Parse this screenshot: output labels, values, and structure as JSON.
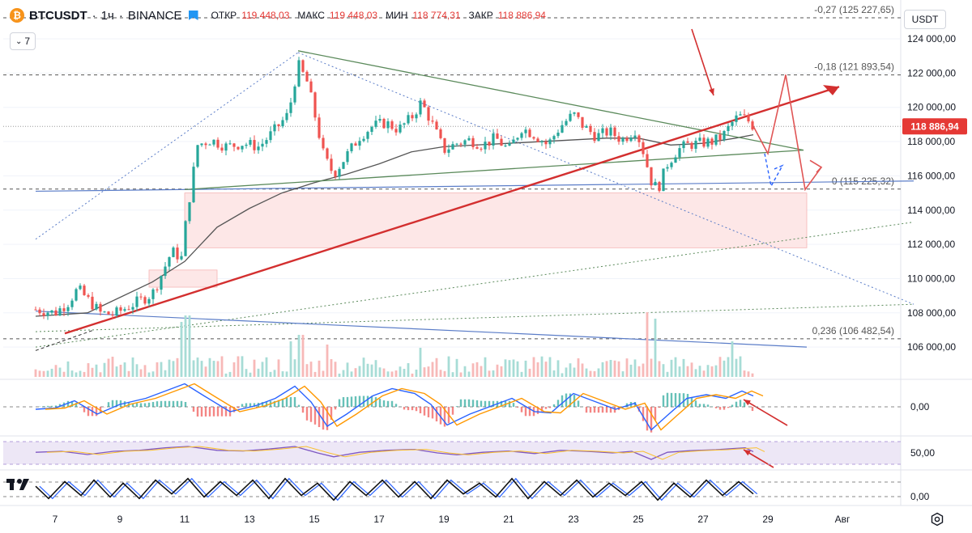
{
  "header": {
    "symbol": "BTCUSDT",
    "sep1": "·",
    "interval": "1ч",
    "sep2": "·",
    "exchange": "BINANCE",
    "open_label": "ОТКР",
    "open_value": "119 448,03",
    "high_label": "МАКС",
    "high_value": "119 448,03",
    "low_label": "МИН",
    "low_value": "118 774,31",
    "close_label": "ЗАКР",
    "close_value": "118 886,94",
    "coin_symbol": "₿"
  },
  "indicators_toggle": {
    "count": "7",
    "icon": "chevron-down-icon"
  },
  "currency_selector": {
    "label": "USDT"
  },
  "settings": {
    "icon": "gear-icon"
  },
  "colors": {
    "up": "#26a69a",
    "down": "#ef5350",
    "trend_red": "#d32f2f",
    "triangle": "#5b8a5b",
    "blue_line": "#5b7dc8",
    "ma": "#555555",
    "fib": "#555555",
    "price_tag": "#e53935",
    "rsi_band": "#ede7f6"
  },
  "chart_data": {
    "type": "candlestick",
    "title": "BTCUSDT · 1ч · BINANCE",
    "last_price": 118886.94,
    "last_price_label": "118 886,94",
    "ylim": [
      105000,
      125500
    ],
    "y_ticks": [
      {
        "v": 124000,
        "label": "124 000,00"
      },
      {
        "v": 122000,
        "label": "122 000,00"
      },
      {
        "v": 120000,
        "label": "120 000,00"
      },
      {
        "v": 118000,
        "label": "118 000,00"
      },
      {
        "v": 116000,
        "label": "116 000,00"
      },
      {
        "v": 114000,
        "label": "114 000,00"
      },
      {
        "v": 112000,
        "label": "112 000,00"
      },
      {
        "v": 110000,
        "label": "110 000,00"
      },
      {
        "v": 108000,
        "label": "108 000,00"
      },
      {
        "v": 106000,
        "label": "106 000,00"
      }
    ],
    "x_ticks": [
      {
        "d": 7,
        "label": "7"
      },
      {
        "d": 9,
        "label": "9"
      },
      {
        "d": 11,
        "label": "11"
      },
      {
        "d": 13,
        "label": "13"
      },
      {
        "d": 15,
        "label": "15"
      },
      {
        "d": 17,
        "label": "17"
      },
      {
        "d": 19,
        "label": "19"
      },
      {
        "d": 21,
        "label": "21"
      },
      {
        "d": 23,
        "label": "23"
      },
      {
        "d": 25,
        "label": "25"
      },
      {
        "d": 27,
        "label": "27"
      },
      {
        "d": 29,
        "label": "29"
      },
      {
        "d": 32,
        "label": "Авг"
      }
    ],
    "fib_levels": [
      {
        "v": 125227.65,
        "label": "-0,27 (125 227,65)"
      },
      {
        "v": 121893.54,
        "label": "-0,18 (121 893,54)"
      },
      {
        "v": 115225.32,
        "label": "0 (115 225,32)"
      },
      {
        "v": 106482.54,
        "label": "0,236 (106 482,54)"
      }
    ],
    "price_path": [
      [
        6.4,
        108200
      ],
      [
        7.0,
        108000
      ],
      [
        7.4,
        108600
      ],
      [
        7.7,
        109400
      ],
      [
        8.0,
        108800
      ],
      [
        8.4,
        108000
      ],
      [
        8.8,
        107900
      ],
      [
        9.2,
        108300
      ],
      [
        9.6,
        108700
      ],
      [
        10.0,
        109100
      ],
      [
        10.3,
        110300
      ],
      [
        10.6,
        111600
      ],
      [
        10.9,
        111200
      ],
      [
        11.0,
        112800
      ],
      [
        11.2,
        115400
      ],
      [
        11.4,
        117800
      ],
      [
        11.8,
        118100
      ],
      [
        12.3,
        117700
      ],
      [
        12.8,
        117900
      ],
      [
        13.3,
        117700
      ],
      [
        13.7,
        118500
      ],
      [
        14.2,
        119600
      ],
      [
        14.5,
        122500
      ],
      [
        14.8,
        121400
      ],
      [
        15.0,
        119700
      ],
      [
        15.3,
        117100
      ],
      [
        15.6,
        116100
      ],
      [
        16.0,
        117200
      ],
      [
        16.4,
        118300
      ],
      [
        16.8,
        118900
      ],
      [
        17.2,
        119100
      ],
      [
        17.6,
        118700
      ],
      [
        18.0,
        119400
      ],
      [
        18.3,
        120300
      ],
      [
        18.6,
        119200
      ],
      [
        19.0,
        117500
      ],
      [
        19.4,
        117900
      ],
      [
        19.8,
        118100
      ],
      [
        20.2,
        117800
      ],
      [
        20.6,
        118200
      ],
      [
        21.0,
        117500
      ],
      [
        21.4,
        118800
      ],
      [
        21.8,
        118400
      ],
      [
        22.2,
        117800
      ],
      [
        22.6,
        118900
      ],
      [
        23.0,
        119600
      ],
      [
        23.3,
        118900
      ],
      [
        23.7,
        118300
      ],
      [
        24.1,
        118600
      ],
      [
        24.5,
        118100
      ],
      [
        24.9,
        118700
      ],
      [
        25.1,
        117800
      ],
      [
        25.4,
        115700
      ],
      [
        25.6,
        115200
      ],
      [
        25.9,
        116700
      ],
      [
        26.2,
        117500
      ],
      [
        26.5,
        117800
      ],
      [
        26.9,
        117900
      ],
      [
        27.3,
        118000
      ],
      [
        27.6,
        118300
      ],
      [
        27.9,
        119100
      ],
      [
        28.1,
        119500
      ],
      [
        28.35,
        119300
      ],
      [
        28.55,
        118900
      ]
    ],
    "volume_spikes": [
      {
        "d": 10.9,
        "h": 0.85
      },
      {
        "d": 11.1,
        "h": 0.95
      },
      {
        "d": 14.3,
        "h": 0.55
      },
      {
        "d": 14.6,
        "h": 0.65
      },
      {
        "d": 15.4,
        "h": 0.5
      },
      {
        "d": 18.3,
        "h": 0.45
      },
      {
        "d": 25.3,
        "h": 1.0
      },
      {
        "d": 25.5,
        "h": 0.9
      },
      {
        "d": 27.9,
        "h": 0.55
      }
    ],
    "macd": {
      "zero_label": "0,00",
      "ylim": [
        -1,
        1
      ],
      "points": [
        [
          6.4,
          -0.1
        ],
        [
          7.0,
          -0.05
        ],
        [
          7.6,
          0.25
        ],
        [
          8.3,
          -0.3
        ],
        [
          9.0,
          0.1
        ],
        [
          9.8,
          0.35
        ],
        [
          10.6,
          0.75
        ],
        [
          11.0,
          0.95
        ],
        [
          11.6,
          0.45
        ],
        [
          12.4,
          -0.2
        ],
        [
          13.2,
          0.05
        ],
        [
          13.8,
          0.35
        ],
        [
          14.4,
          0.85
        ],
        [
          14.9,
          0.2
        ],
        [
          15.4,
          -0.8
        ],
        [
          16.0,
          -0.3
        ],
        [
          16.8,
          0.45
        ],
        [
          17.4,
          0.75
        ],
        [
          18.1,
          0.55
        ],
        [
          18.6,
          0.1
        ],
        [
          19.1,
          -0.75
        ],
        [
          19.8,
          -0.3
        ],
        [
          20.5,
          0.05
        ],
        [
          21.1,
          0.35
        ],
        [
          21.8,
          -0.2
        ],
        [
          22.3,
          -0.25
        ],
        [
          23.0,
          0.55
        ],
        [
          23.6,
          0.25
        ],
        [
          24.3,
          -0.1
        ],
        [
          24.9,
          0.15
        ],
        [
          25.4,
          -0.95
        ],
        [
          25.9,
          -0.35
        ],
        [
          26.5,
          0.35
        ],
        [
          27.1,
          0.5
        ],
        [
          27.7,
          0.35
        ],
        [
          28.2,
          0.65
        ],
        [
          28.55,
          0.45
        ]
      ]
    },
    "rsi": {
      "level_label": "50,00",
      "ylim": [
        0,
        100
      ],
      "points": [
        [
          6.4,
          52
        ],
        [
          7.2,
          55
        ],
        [
          8.0,
          45
        ],
        [
          8.8,
          55
        ],
        [
          9.6,
          58
        ],
        [
          10.4,
          66
        ],
        [
          11.1,
          70
        ],
        [
          12.0,
          58
        ],
        [
          12.8,
          56
        ],
        [
          13.6,
          62
        ],
        [
          14.4,
          70
        ],
        [
          15.1,
          50
        ],
        [
          15.6,
          38
        ],
        [
          16.4,
          52
        ],
        [
          17.2,
          58
        ],
        [
          18.1,
          61
        ],
        [
          18.8,
          50
        ],
        [
          19.4,
          44
        ],
        [
          20.2,
          52
        ],
        [
          21.0,
          56
        ],
        [
          21.8,
          48
        ],
        [
          22.6,
          58
        ],
        [
          23.4,
          55
        ],
        [
          24.2,
          50
        ],
        [
          24.8,
          55
        ],
        [
          25.4,
          30
        ],
        [
          25.9,
          52
        ],
        [
          26.6,
          57
        ],
        [
          27.4,
          60
        ],
        [
          28.0,
          64
        ],
        [
          28.3,
          66
        ],
        [
          28.55,
          54
        ]
      ]
    },
    "stoch": {
      "zero_label": "0,00",
      "ylim": [
        0,
        100
      ],
      "points": [
        [
          6.4,
          60
        ],
        [
          6.8,
          20
        ],
        [
          7.3,
          75
        ],
        [
          7.8,
          30
        ],
        [
          8.2,
          80
        ],
        [
          8.7,
          25
        ],
        [
          9.1,
          70
        ],
        [
          9.6,
          20
        ],
        [
          10.1,
          80
        ],
        [
          10.6,
          35
        ],
        [
          11.1,
          85
        ],
        [
          11.6,
          25
        ],
        [
          12.1,
          75
        ],
        [
          12.6,
          30
        ],
        [
          13.1,
          80
        ],
        [
          13.6,
          20
        ],
        [
          14.1,
          85
        ],
        [
          14.6,
          30
        ],
        [
          15.1,
          70
        ],
        [
          15.6,
          15
        ],
        [
          16.1,
          75
        ],
        [
          16.6,
          30
        ],
        [
          17.1,
          80
        ],
        [
          17.6,
          25
        ],
        [
          18.1,
          75
        ],
        [
          18.6,
          20
        ],
        [
          19.1,
          80
        ],
        [
          19.6,
          35
        ],
        [
          20.1,
          70
        ],
        [
          20.6,
          25
        ],
        [
          21.1,
          85
        ],
        [
          21.6,
          20
        ],
        [
          22.1,
          75
        ],
        [
          22.6,
          30
        ],
        [
          23.1,
          80
        ],
        [
          23.6,
          25
        ],
        [
          24.1,
          70
        ],
        [
          24.6,
          30
        ],
        [
          25.1,
          75
        ],
        [
          25.6,
          15
        ],
        [
          26.1,
          70
        ],
        [
          26.6,
          25
        ],
        [
          27.1,
          80
        ],
        [
          27.6,
          30
        ],
        [
          28.1,
          75
        ],
        [
          28.55,
          35
        ]
      ]
    }
  }
}
